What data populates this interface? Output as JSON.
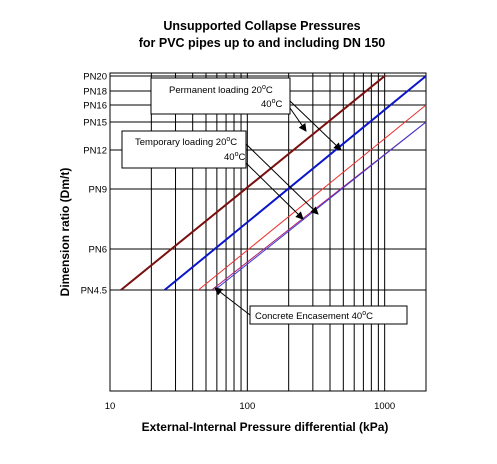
{
  "chart_data": {
    "type": "line",
    "title_line1": "Unsupported Collapse Pressures",
    "title_line2": "for PVC pipes up to and including DN 150",
    "xlabel": "External-Internal Pressure differential (kPa)",
    "ylabel": "Dimension ratio (Dm/t)",
    "x_scale": "log",
    "xlim": [
      10,
      2000
    ],
    "x_ticks": [
      {
        "value": 10,
        "label": "10"
      },
      {
        "value": 100,
        "label": "100"
      },
      {
        "value": 1000,
        "label": "1000"
      }
    ],
    "y_ticks": [
      {
        "label": "PN20"
      },
      {
        "label": "PN18"
      },
      {
        "label": "PN16"
      },
      {
        "label": "PN15"
      },
      {
        "label": "PN12"
      },
      {
        "label": "PN9"
      },
      {
        "label": "PN6"
      },
      {
        "label": "PN4.5"
      }
    ],
    "grid": true,
    "series": [
      {
        "color": "#7a1010",
        "width": 2,
        "x": [
          12,
          1000
        ],
        "y": [
          "PN4.5",
          "PN20"
        ]
      },
      {
        "color": "#0a16c8",
        "width": 2,
        "x": [
          25,
          2000
        ],
        "y": [
          "PN4.5",
          "PN20"
        ]
      },
      {
        "color": "#ee3030",
        "width": 1,
        "x": [
          44,
          2000
        ],
        "y": [
          "PN4.5",
          "PN16"
        ]
      },
      {
        "color": "#b02070",
        "width": 1,
        "x": [
          55,
          2000
        ],
        "y": [
          "PN4.5",
          "PN15"
        ]
      },
      {
        "color": "#3a3ad8",
        "width": 1,
        "x": [
          58,
          2000
        ],
        "y": [
          "PN4.5",
          "PN15"
        ]
      }
    ],
    "annotations": {
      "permanent_line1": "Permanent loading 20",
      "permanent_line1_unit": "C",
      "permanent_line2": "40",
      "permanent_line2_unit": "C",
      "temporary_line1": "Temporary loading 20",
      "temporary_line1_unit": "C",
      "temporary_line2": "40",
      "temporary_line2_unit": "C",
      "concrete": "Concrete Encasement 40",
      "concrete_unit": "C",
      "degree": "o"
    }
  }
}
